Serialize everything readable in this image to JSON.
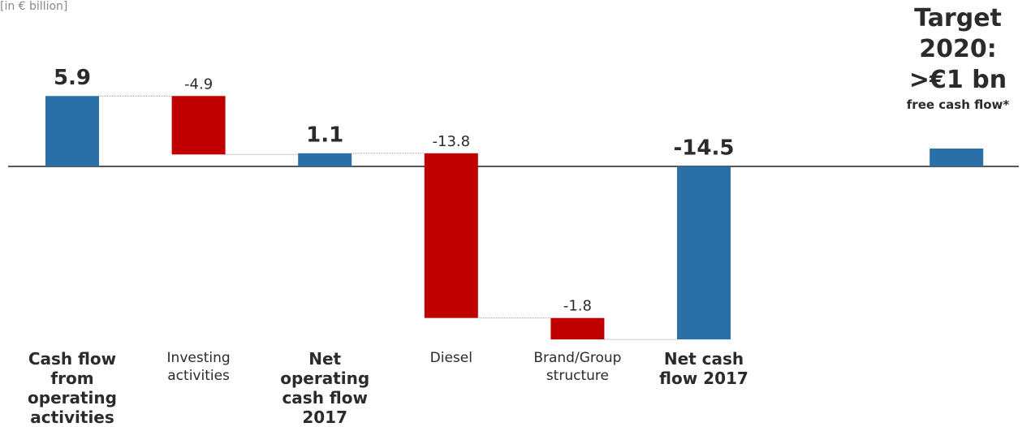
{
  "chart_data": {
    "type": "waterfall",
    "unit_label": "[in € billion]",
    "categories": [
      "Cash flow from operating activities",
      "Investing activities",
      "Net operating cash flow 2017",
      "Diesel",
      "Brand/Group structure",
      "Net cash flow 2017"
    ],
    "values": [
      5.9,
      -4.9,
      1.1,
      -13.8,
      -1.8,
      -14.5
    ],
    "kinds": [
      "total",
      "delta",
      "total",
      "delta",
      "delta",
      "total"
    ],
    "colors": {
      "total": "#2a6fa8",
      "decrease": "#c00000"
    },
    "ylim": [
      -15,
      8
    ],
    "target": {
      "title": "Target 2020: >€1 bn",
      "subtitle": "free cash flow*",
      "value": 1.5
    }
  }
}
